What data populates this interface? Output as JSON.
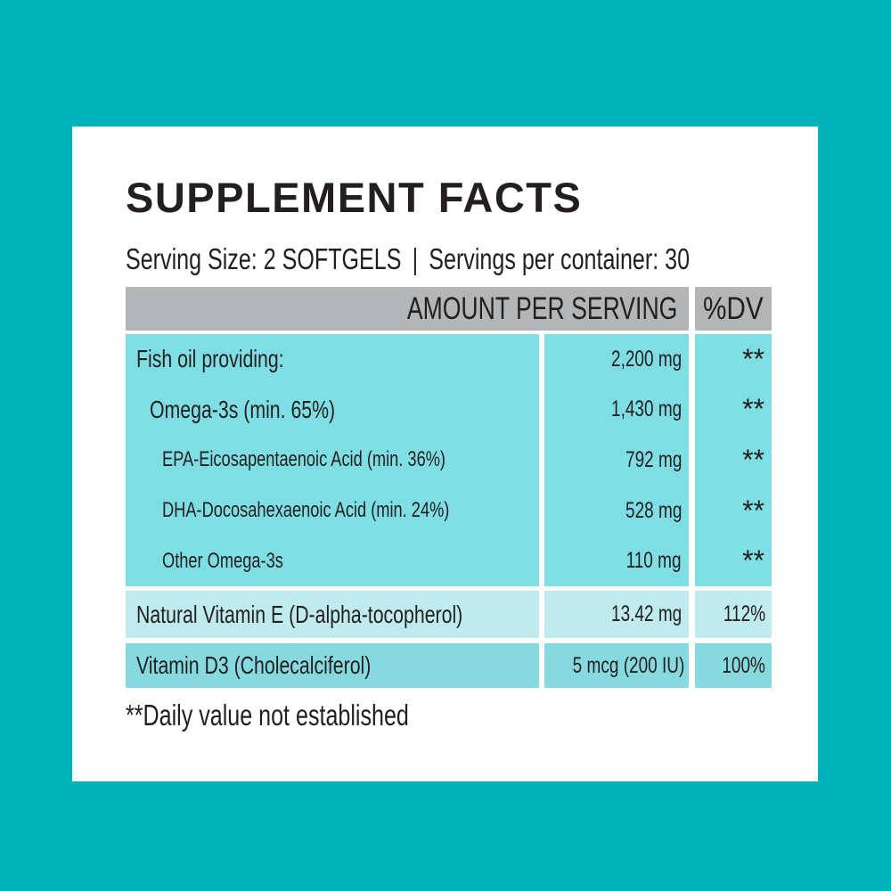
{
  "title": "SUPPLEMENT FACTS",
  "serving": {
    "size": "Serving Size: 2 SOFTGELS",
    "separator": "|",
    "per_container": "Servings per container: 30"
  },
  "table": {
    "headers": {
      "amount_per_serving": "AMOUNT PER SERVING",
      "dv": "%DV"
    },
    "rows": [
      {
        "label": "Fish oil providing:",
        "amount": "2,200 mg",
        "dv": "**"
      },
      {
        "label": "Omega-3s (min. 65%)",
        "amount": "1,430 mg",
        "dv": "**"
      },
      {
        "label": "EPA-Eicosapentaenoic Acid (min. 36%)",
        "amount": "792 mg",
        "dv": "**"
      },
      {
        "label": "DHA-Docosahexaenoic Acid (min. 24%)",
        "amount": "528 mg",
        "dv": "**"
      },
      {
        "label": "Other Omega-3s",
        "amount": "110 mg",
        "dv": "**"
      },
      {
        "label": "Natural Vitamin E (D-alpha-tocopherol)",
        "amount": "13.42 mg",
        "dv": "112%"
      },
      {
        "label": "Vitamin D3 (Cholecalciferol)",
        "amount": "5 mcg (200 IU)",
        "dv": "100%"
      }
    ]
  },
  "footnote": "**Daily value not established",
  "colors": {
    "background": "#00b3bb",
    "card": "#ffffff",
    "header_gray": "#b3b5b7",
    "row_teal": "#7edee3",
    "row_teal_light": "#bfebee",
    "row_teal_mid": "#86d9de",
    "text": "#231f20"
  }
}
